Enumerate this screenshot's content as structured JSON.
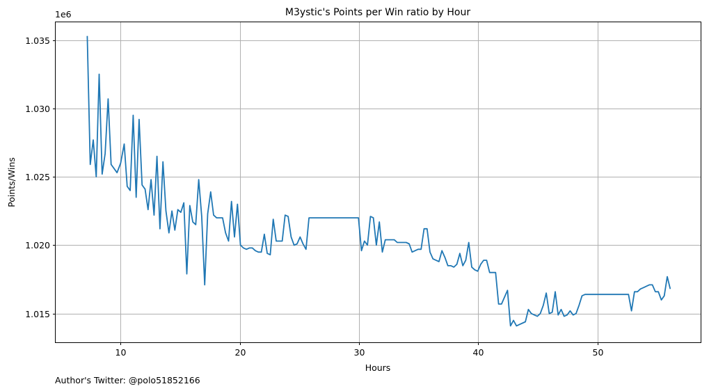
{
  "chart_data": {
    "type": "line",
    "title": "M3ystic's Points per Win ratio by Hour",
    "xlabel": "Hours",
    "ylabel": "Points/Wins",
    "y_offset_label": "1e6",
    "footnote": "Author's Twitter: @polo51852166",
    "grid": true,
    "xlim": [
      4.55,
      58.65
    ],
    "ylim": [
      1012.9,
      1036.3
    ],
    "x_ticks": [
      10,
      20,
      30,
      40,
      50
    ],
    "y_ticks": [
      1015,
      1020,
      1025,
      1030,
      1035
    ],
    "y_tick_labels": [
      "1.015",
      "1.020",
      "1.025",
      "1.030",
      "1.035"
    ],
    "line_color": "#1f77b4",
    "series": [
      {
        "x": [
          7.2,
          7.45,
          7.7,
          7.95,
          8.2,
          8.45,
          8.7,
          8.95,
          9.2,
          9.45,
          9.7,
          10.0,
          10.3,
          10.55,
          10.8,
          11.05,
          11.3,
          11.55,
          11.8,
          12.05,
          12.3,
          12.55,
          12.8,
          13.05,
          13.3,
          13.55,
          13.8,
          14.05,
          14.3,
          14.55,
          14.8,
          15.05,
          15.3,
          15.55,
          15.8,
          16.05,
          16.3,
          16.55,
          16.8,
          17.05,
          17.3,
          17.55,
          17.8,
          18.05,
          18.3,
          18.55,
          18.8,
          19.05,
          19.3,
          19.55,
          19.8,
          20.05,
          20.3,
          20.55,
          20.8,
          21.05,
          21.3,
          21.55,
          21.8,
          22.05,
          22.3,
          22.55,
          22.8,
          23.05,
          23.3,
          23.55,
          23.8,
          24.05,
          24.3,
          24.55,
          24.8,
          25.05,
          25.3,
          25.55,
          25.8,
          26.05,
          26.3,
          29.95,
          30.2,
          30.45,
          30.7,
          30.95,
          31.2,
          31.45,
          31.7,
          31.95,
          32.2,
          32.45,
          32.7,
          32.95,
          33.2,
          33.45,
          33.7,
          33.95,
          34.2,
          34.45,
          34.7,
          34.95,
          35.2,
          35.45,
          35.7,
          35.95,
          36.2,
          36.45,
          36.7,
          36.95,
          37.2,
          37.45,
          37.7,
          37.95,
          38.2,
          38.45,
          38.7,
          38.95,
          39.2,
          39.45,
          39.7,
          39.95,
          40.2,
          40.45,
          40.7,
          40.95,
          41.2,
          41.45,
          41.7,
          41.95,
          42.2,
          42.45,
          42.7,
          42.95,
          43.2,
          43.45,
          43.7,
          43.95,
          44.2,
          44.45,
          44.7,
          44.95,
          45.2,
          45.45,
          45.7,
          45.95,
          46.2,
          46.45,
          46.7,
          46.95,
          47.2,
          47.45,
          47.7,
          47.95,
          48.2,
          48.45,
          48.7,
          48.95,
          49.2,
          52.6,
          52.85,
          53.1,
          53.35,
          53.6,
          53.85,
          54.1,
          54.35,
          54.6,
          54.85,
          55.1,
          55.35,
          55.6,
          55.85,
          56.1
        ],
        "values": [
          1035.3,
          1025.9,
          1027.7,
          1025.0,
          1032.5,
          1025.2,
          1026.7,
          1030.7,
          1025.9,
          1025.6,
          1025.3,
          1026.0,
          1027.4,
          1024.3,
          1024.0,
          1029.5,
          1023.5,
          1029.2,
          1024.4,
          1024.1,
          1022.6,
          1024.8,
          1022.2,
          1026.5,
          1021.2,
          1026.1,
          1022.5,
          1020.9,
          1022.5,
          1021.1,
          1022.6,
          1022.4,
          1023.1,
          1017.9,
          1022.9,
          1021.7,
          1021.5,
          1024.8,
          1022.1,
          1017.1,
          1022.3,
          1023.9,
          1022.2,
          1022.0,
          1022.0,
          1022.0,
          1020.9,
          1020.3,
          1023.2,
          1020.6,
          1023.0,
          1020.0,
          1019.8,
          1019.7,
          1019.8,
          1019.8,
          1019.6,
          1019.5,
          1019.5,
          1020.8,
          1019.4,
          1019.3,
          1021.9,
          1020.3,
          1020.3,
          1020.3,
          1022.2,
          1022.1,
          1020.6,
          1020.0,
          1020.1,
          1020.6,
          1020.1,
          1019.7,
          1022.0,
          1022.0,
          1022.0,
          1022.0,
          1019.6,
          1020.3,
          1020.0,
          1022.1,
          1022.0,
          1020.0,
          1021.7,
          1019.5,
          1020.4,
          1020.4,
          1020.4,
          1020.4,
          1020.2,
          1020.2,
          1020.2,
          1020.2,
          1020.1,
          1019.5,
          1019.6,
          1019.7,
          1019.7,
          1021.2,
          1021.2,
          1019.5,
          1019.0,
          1018.9,
          1018.8,
          1019.6,
          1019.1,
          1018.5,
          1018.5,
          1018.4,
          1018.6,
          1019.4,
          1018.5,
          1018.9,
          1020.2,
          1018.4,
          1018.2,
          1018.1,
          1018.6,
          1018.9,
          1018.9,
          1018.0,
          1018.0,
          1018.0,
          1015.7,
          1015.7,
          1016.2,
          1016.7,
          1014.1,
          1014.5,
          1014.1,
          1014.2,
          1014.3,
          1014.4,
          1015.3,
          1015.0,
          1014.9,
          1014.8,
          1015.0,
          1015.6,
          1016.5,
          1015.0,
          1015.1,
          1016.6,
          1014.9,
          1015.3,
          1014.8,
          1014.9,
          1015.2,
          1014.9,
          1015.0,
          1015.6,
          1016.3,
          1016.4,
          1016.4,
          1016.4,
          1015.2,
          1016.6,
          1016.6,
          1016.8,
          1016.9,
          1017.0,
          1017.1,
          1017.1,
          1016.6,
          1016.6,
          1016.0,
          1016.3,
          1017.7,
          1016.8
        ]
      }
    ]
  }
}
